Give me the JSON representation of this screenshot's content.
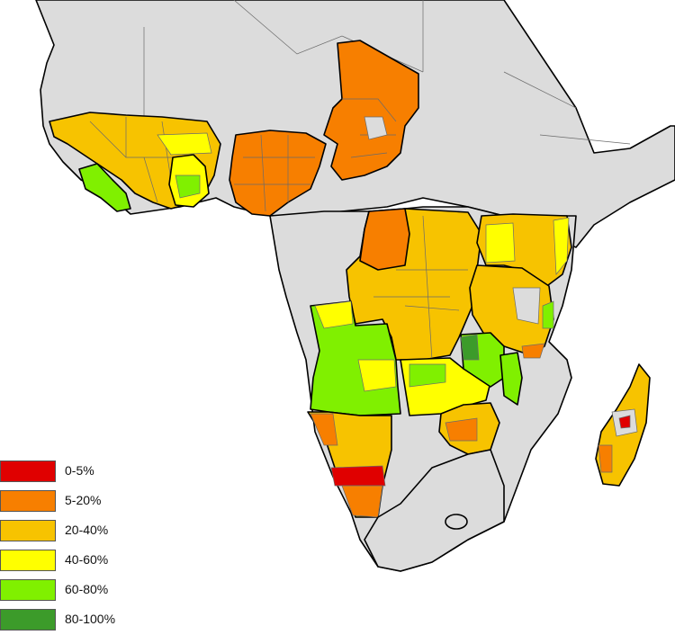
{
  "legend": {
    "items": [
      {
        "label": "0-5%",
        "color": "#e00000"
      },
      {
        "label": "5-20%",
        "color": "#f77f00"
      },
      {
        "label": "20-40%",
        "color": "#f7c300"
      },
      {
        "label": "40-60%",
        "color": "#ffff00"
      },
      {
        "label": "60-80%",
        "color": "#80f000"
      },
      {
        "label": "80-100%",
        "color": "#3c9b2a"
      }
    ]
  },
  "colors": {
    "no_data": "#dcdcdc",
    "ocean": "#ffffff",
    "border": "#000000"
  }
}
